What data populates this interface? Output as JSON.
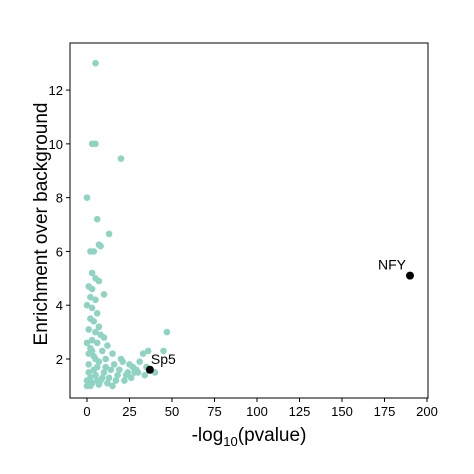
{
  "chart_data": {
    "type": "scatter",
    "xlabel": [
      "-log",
      "10",
      "(pvalue)"
    ],
    "ylabel": "Enrichment over background",
    "xlim": [
      -10,
      200.6
    ],
    "ylim": [
      0.55,
      13.75
    ],
    "xticks": [
      0,
      25,
      50,
      75,
      100,
      125,
      150,
      175,
      200
    ],
    "yticks": [
      2,
      4,
      6,
      8,
      10,
      12
    ],
    "points": {
      "color": "#8fd3c3",
      "x": [
        5,
        3,
        5,
        20,
        0,
        6,
        13,
        7,
        8,
        2,
        4,
        3,
        5,
        7,
        1,
        3,
        10,
        2,
        5,
        0,
        3,
        6,
        2,
        4,
        7,
        1,
        5,
        8,
        10,
        3,
        6,
        12,
        2,
        9,
        15,
        4,
        20,
        7,
        25,
        1,
        30,
        35,
        33,
        36,
        45,
        47,
        34,
        40,
        26,
        18,
        14,
        10,
        5,
        2,
        0,
        3,
        8,
        12,
        22,
        28,
        16,
        11,
        6,
        9,
        4,
        1,
        0,
        2,
        7,
        13,
        19,
        24,
        17,
        29,
        31,
        21,
        27,
        23,
        15,
        5,
        3,
        0,
        1,
        6,
        11
      ],
      "y": [
        13,
        10,
        10,
        9.45,
        8,
        7.2,
        6.65,
        6.25,
        6.2,
        6,
        6,
        5.2,
        5,
        4.9,
        4.7,
        4.6,
        4.4,
        4.3,
        4.2,
        4,
        3.9,
        3.7,
        3.5,
        3.4,
        3.2,
        3.1,
        3,
        2.9,
        2.8,
        2.7,
        2.6,
        2.5,
        2.4,
        2.3,
        2.2,
        2.1,
        2.0,
        1.9,
        1.8,
        1.8,
        1.5,
        1.7,
        2.2,
        2.3,
        2.3,
        3.0,
        1.4,
        1.5,
        1.3,
        1.4,
        1.6,
        1.5,
        1.4,
        1.3,
        1.2,
        1.1,
        1.2,
        1.1,
        1.2,
        1.5,
        1.8,
        2.0,
        1.7,
        1.3,
        1.6,
        1.5,
        1.0,
        1.0,
        1.05,
        1.3,
        1.6,
        1.5,
        1.2,
        1.6,
        1.9,
        1.9,
        1.7,
        1.4,
        1.0,
        2.0,
        2.3,
        2.6,
        2.2,
        1.2,
        1.7
      ]
    },
    "highlights": {
      "color": "#000000",
      "x": [
        190,
        37
      ],
      "y": [
        5.1,
        1.6
      ],
      "labels": [
        "NFY",
        "Sp5"
      ]
    }
  }
}
